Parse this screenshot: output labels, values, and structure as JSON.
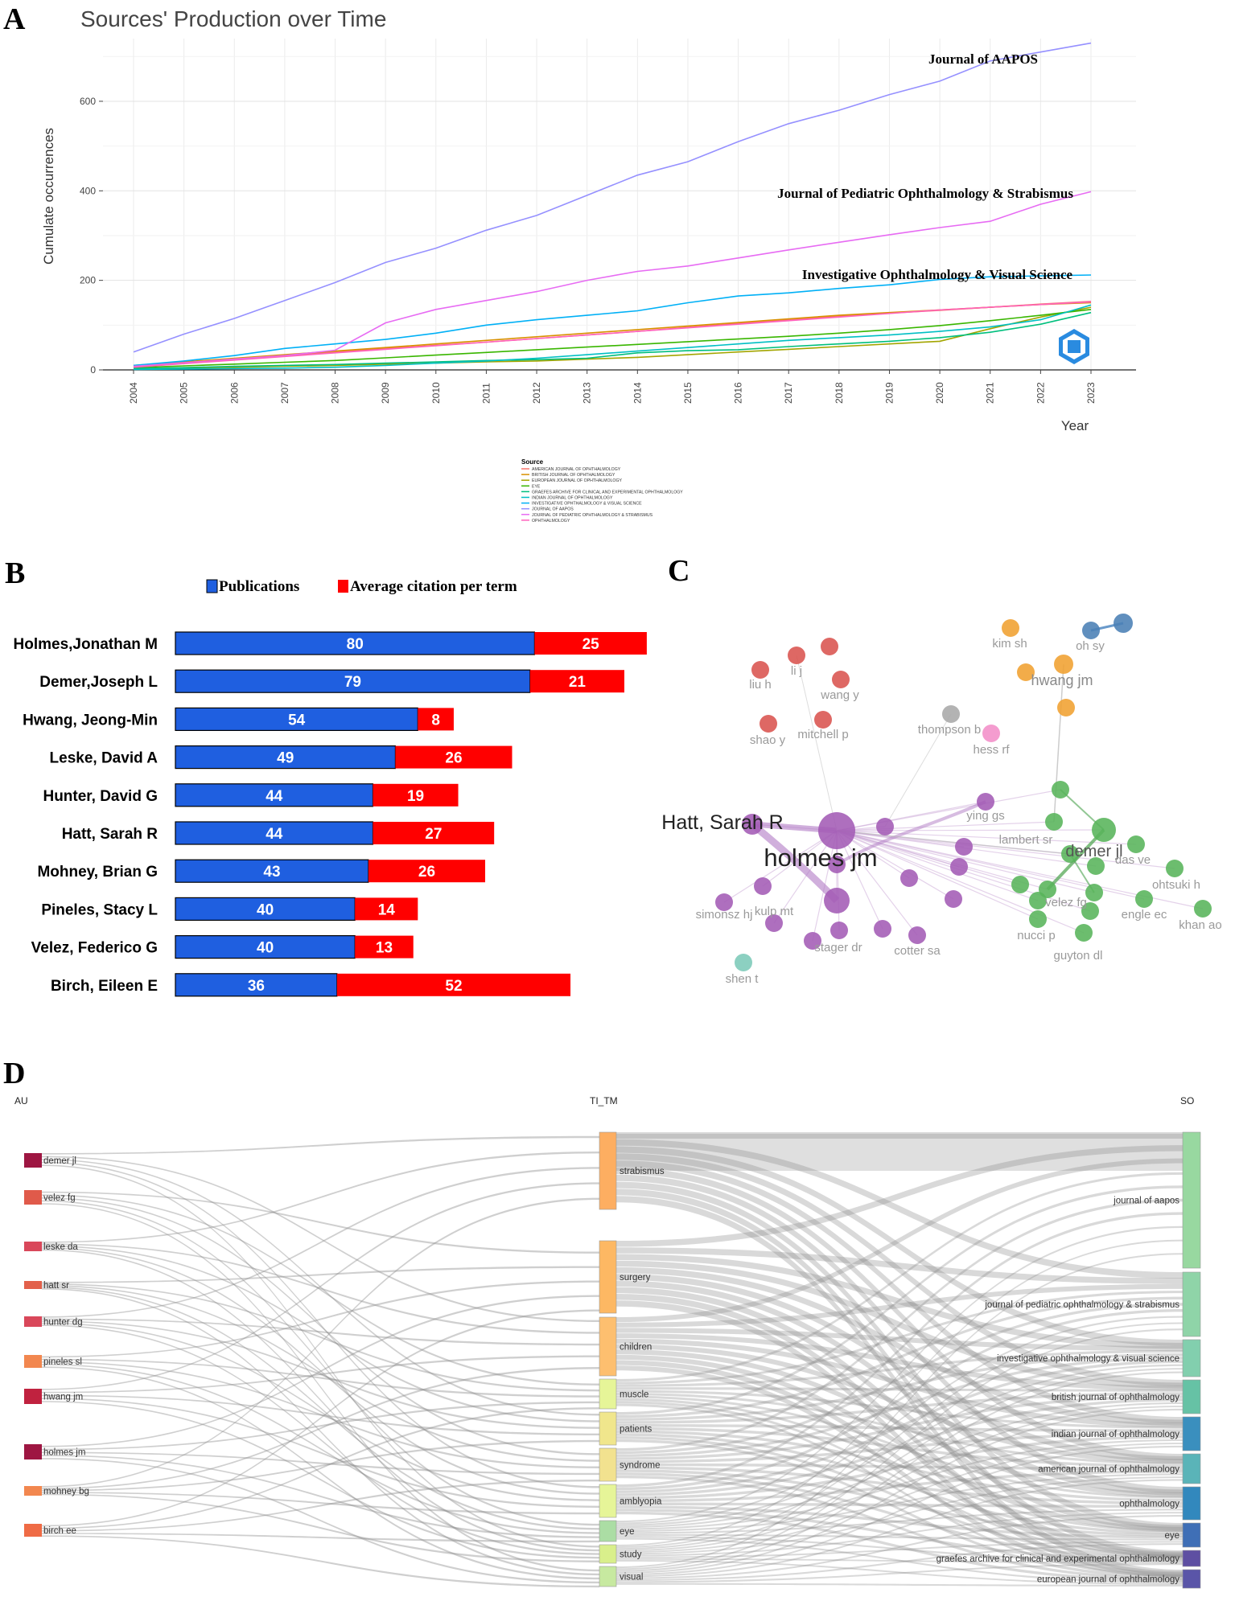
{
  "panels": {
    "a": "A",
    "b": "B",
    "c": "C",
    "d": "D"
  },
  "chart_data": [
    {
      "panel": "A",
      "type": "line",
      "title": "Sources' Production over Time",
      "xlabel": "Year",
      "ylabel": "Cumulate occurrences",
      "x": [
        2004,
        2005,
        2006,
        2007,
        2008,
        2009,
        2010,
        2011,
        2012,
        2013,
        2014,
        2015,
        2016,
        2017,
        2018,
        2019,
        2020,
        2021,
        2022,
        2023
      ],
      "yticks": [
        0,
        200,
        400,
        600
      ],
      "ylim": [
        0,
        740
      ],
      "grid": true,
      "legend_title": "Source",
      "legend_position": "bottom",
      "annotations": [
        "Journal of AAPOS",
        "Journal of Pediatric Ophthalmology & Strabismus",
        "Investigative Ophthalmology & Visual Science"
      ],
      "series": [
        {
          "name": "AMERICAN JOURNAL OF OPHTHALMOLOGY",
          "color": "#f8766d",
          "values": [
            8,
            16,
            24,
            32,
            40,
            48,
            55,
            62,
            70,
            78,
            86,
            95,
            104,
            112,
            120,
            127,
            133,
            140,
            147,
            153
          ]
        },
        {
          "name": "BRITISH JOURNAL OF OPHTHALMOLOGY",
          "color": "#d89000",
          "values": [
            10,
            18,
            26,
            34,
            42,
            50,
            58,
            66,
            74,
            82,
            90,
            98,
            106,
            114,
            122,
            128,
            134,
            140,
            146,
            150
          ]
        },
        {
          "name": "EUROPEAN JOURNAL OF OPHTHALMOLOGY",
          "color": "#a3a500",
          "values": [
            2,
            4,
            6,
            8,
            10,
            13,
            15,
            18,
            20,
            24,
            28,
            34,
            40,
            46,
            52,
            58,
            64,
            92,
            118,
            140
          ]
        },
        {
          "name": "EYE",
          "color": "#39b600",
          "values": [
            5,
            9,
            13,
            17,
            21,
            27,
            33,
            39,
            45,
            51,
            57,
            63,
            69,
            75,
            82,
            90,
            99,
            110,
            122,
            135
          ]
        },
        {
          "name": "GRAEFES ARCHIVE FOR CLINICAL AND EXPERIMENTAL OPHTHALMOLOGY",
          "color": "#00bf7d",
          "values": [
            3,
            5,
            8,
            10,
            12,
            15,
            18,
            21,
            23,
            26,
            38,
            43,
            45,
            52,
            58,
            64,
            72,
            84,
            102,
            128
          ]
        },
        {
          "name": "INDIAN JOURNAL OF OPHTHALMOLOGY",
          "color": "#00bfc4",
          "values": [
            1,
            2,
            3,
            4,
            6,
            10,
            15,
            20,
            26,
            34,
            42,
            50,
            58,
            66,
            72,
            78,
            86,
            96,
            112,
            145
          ]
        },
        {
          "name": "INVESTIGATIVE OPHTHALMOLOGY & VISUAL SCIENCE",
          "color": "#00b0f6",
          "values": [
            10,
            20,
            32,
            48,
            58,
            68,
            82,
            100,
            112,
            122,
            132,
            150,
            165,
            172,
            182,
            190,
            202,
            208,
            210,
            212
          ]
        },
        {
          "name": "JOURNAL OF AAPOS",
          "color": "#9590ff",
          "values": [
            40,
            80,
            115,
            155,
            195,
            240,
            272,
            312,
            345,
            390,
            435,
            465,
            510,
            550,
            580,
            615,
            645,
            690,
            710,
            730
          ]
        },
        {
          "name": "JOURNAL OF PEDIATRIC OPHTHALMOLOGY & STRABISMUS",
          "color": "#e76bf3",
          "values": [
            8,
            16,
            24,
            32,
            44,
            105,
            135,
            155,
            175,
            200,
            220,
            232,
            250,
            268,
            285,
            302,
            318,
            332,
            370,
            398
          ]
        },
        {
          "name": "OPHTHALMOLOGY",
          "color": "#ff62bc",
          "values": [
            6,
            14,
            22,
            30,
            38,
            46,
            54,
            62,
            70,
            78,
            86,
            94,
            102,
            110,
            118,
            126,
            134,
            140,
            146,
            152
          ]
        }
      ]
    },
    {
      "panel": "B",
      "type": "bar",
      "stacked": true,
      "categories": [
        "Holmes,Jonathan M",
        "Demer,Joseph L",
        "Hwang, Jeong-Min",
        "Leske, David A",
        "Hunter, David G",
        "Hatt, Sarah R",
        "Mohney, Brian G",
        "Pineles, Stacy L",
        "Velez, Federico G",
        "Birch, Eileen E"
      ],
      "series": [
        {
          "name": "Publications",
          "color": "#1f5fe0",
          "values": [
            80,
            79,
            54,
            49,
            44,
            44,
            43,
            40,
            40,
            36
          ]
        },
        {
          "name": "Average citation per term",
          "color": "#ff0000",
          "values": [
            25,
            21,
            8,
            26,
            19,
            27,
            26,
            14,
            13,
            52
          ]
        }
      ]
    },
    {
      "panel": "C",
      "type": "network",
      "clusters": [
        {
          "name": "red",
          "color": "#d9534f",
          "labels": [
            "li j",
            "liu h",
            "wang y",
            "shao y",
            "mitchell p"
          ]
        },
        {
          "name": "orange",
          "color": "#f0a030",
          "labels": [
            "kim sh",
            "hwang jm"
          ]
        },
        {
          "name": "blue",
          "color": "#4a7fb5",
          "labels": [
            "oh sy"
          ]
        },
        {
          "name": "gray",
          "color": "#a8a8a8",
          "labels": [
            "thompson b"
          ]
        },
        {
          "name": "pink",
          "color": "#f28ec8",
          "labels": [
            "hess rf"
          ]
        },
        {
          "name": "purple",
          "color": "#a35bb5",
          "labels": [
            "Hatt, Sarah R",
            "holmes jm",
            "ying gs",
            "simonsz hj",
            "kulp mt",
            "stager dr",
            "cotter sa"
          ]
        },
        {
          "name": "green",
          "color": "#58b45a",
          "labels": [
            "lambert sr",
            "demer jl",
            "das ve",
            "ohtsuki h",
            "velez fg",
            "engle ec",
            "khan ao",
            "nucci p",
            "guyton dl"
          ]
        },
        {
          "name": "teal",
          "color": "#7cc9b8",
          "labels": [
            "shen t"
          ]
        }
      ]
    },
    {
      "panel": "D",
      "type": "sankey",
      "columns": [
        "AU",
        "TI_TM",
        "SO"
      ],
      "au": [
        "demer jl",
        "velez fg",
        "leske da",
        "hatt sr",
        "hunter dg",
        "pineles sl",
        "hwang jm",
        "holmes jm",
        "mohney bg",
        "birch ee"
      ],
      "ti_tm": [
        "strabismus",
        "surgery",
        "children",
        "muscle",
        "patients",
        "syndrome",
        "amblyopia",
        "eye",
        "study",
        "visual"
      ],
      "so": [
        "journal of aapos",
        "journal of pediatric ophthalmology & strabismus",
        "investigative ophthalmology & visual science",
        "british journal of ophthalmology",
        "indian journal of ophthalmology",
        "american journal of ophthalmology",
        "ophthalmology",
        "eye",
        "graefes archive for clinical and experimental ophthalmology",
        "european journal of ophthalmology"
      ]
    }
  ]
}
